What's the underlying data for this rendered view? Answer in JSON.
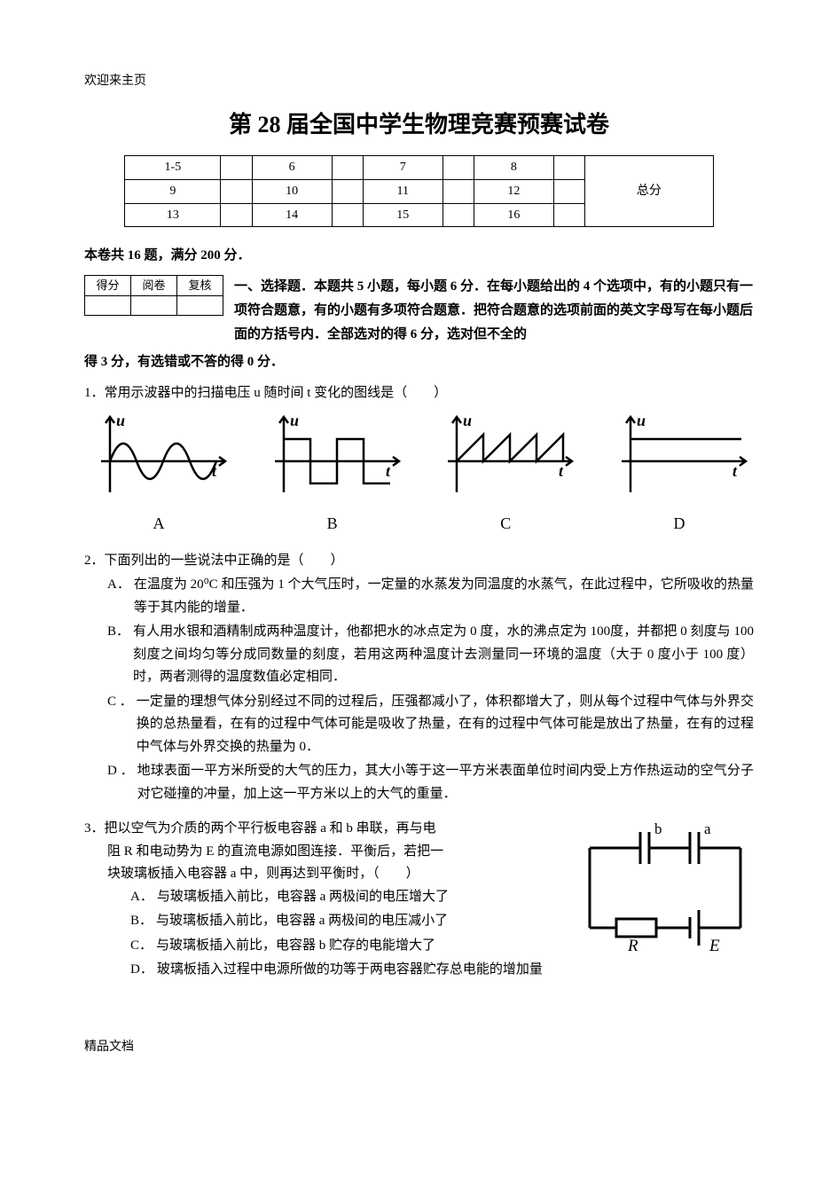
{
  "header": "欢迎来主页",
  "title": "第 28 届全国中学生物理竞赛预赛试卷",
  "score_table": {
    "rows": [
      [
        "1-5",
        "",
        "6",
        "",
        "7",
        "",
        "8",
        "",
        "总分"
      ],
      [
        "9",
        "",
        "10",
        "",
        "11",
        "",
        "12",
        "",
        ""
      ],
      [
        "13",
        "",
        "14",
        "",
        "15",
        "",
        "16",
        "",
        ""
      ]
    ]
  },
  "summary": "本卷共 16 题，满分 200   分．",
  "mini_table": {
    "headers": [
      "得分",
      "阅卷",
      "复核"
    ]
  },
  "section_intro": "一、选择题．本题共 5 小题，每小题 6 分．在每小题给出的 4 个选项中，有的小题只有一项符合题意，有的小题有多项符合题意．把符合题意的选项前面的英文字母写在每小题后面的方括号内．全部选对的得 6 分，选对但不全的",
  "section_intro_cont": "得 3 分，有选错或不答的得 0 分．",
  "q1": {
    "text": "1．常用示波器中的扫描电压 u 随时间 t 变化的图线是（　　）",
    "labels": [
      "A",
      "B",
      "C",
      "D"
    ]
  },
  "q2": {
    "text": "2．下面列出的一些说法中正确的是（　　）",
    "options": [
      {
        "label": "A．",
        "text": "在温度为 20⁰C 和压强为 1 个大气压时，一定量的水蒸发为同温度的水蒸气，在此过程中，它所吸收的热量等于其内能的增量．"
      },
      {
        "label": "B．",
        "text": "有人用水银和酒精制成两种温度计，他都把水的冰点定为 0 度，水的沸点定为 100度，并都把 0 刻度与 100 刻度之间均匀等分成同数量的刻度，若用这两种温度计去测量同一环境的温度（大于 0 度小于 100 度）时，两者测得的温度数值必定相同．"
      },
      {
        "label": "C ．",
        "text": "一定量的理想气体分别经过不同的过程后，压强都减小了，体积都增大了，则从每个过程中气体与外界交换的总热量看，在有的过程中气体可能是吸收了热量，在有的过程中气体可能是放出了热量，在有的过程中气体与外界交换的热量为 0．"
      },
      {
        "label": "D ．",
        "text": "地球表面一平方米所受的大气的压力，其大小等于这一平方米表面单位时间内受上方作热运动的空气分子对它碰撞的冲量，加上这一平方米以上的大气的重量．"
      }
    ]
  },
  "q3": {
    "intro1": "3．把以空气为介质的两个平行板电容器 a 和 b 串联，再与电",
    "intro2": "阻 R 和电动势为 E 的直流电源如图连接．平衡后，若把一",
    "intro3": "块玻璃板插入电容器 a 中，则再达到平衡时，（　　）",
    "options": [
      {
        "label": "A．",
        "text": "与玻璃板插入前比，电容器 a 两极间的电压增大了"
      },
      {
        "label": "B．",
        "text": "与玻璃板插入前比，电容器 a 两极间的电压减小了"
      },
      {
        "label": "C．",
        "text": "与玻璃板插入前比，电容器 b 贮存的电能增大了"
      },
      {
        "label": "D．",
        "text": "玻璃板插入过程中电源所做的功等于两电容器贮存总电能的增加量"
      }
    ],
    "circuit_labels": {
      "b": "b",
      "a": "a",
      "R": "R",
      "E": "E"
    }
  },
  "graph_style": {
    "axis_color": "#000000",
    "curve_color": "#000000",
    "stroke_width": 2.5,
    "axis_label_u": "u",
    "axis_label_t": "t",
    "label_font": "italic 18px Times New Roman"
  },
  "footer": "精品文档"
}
